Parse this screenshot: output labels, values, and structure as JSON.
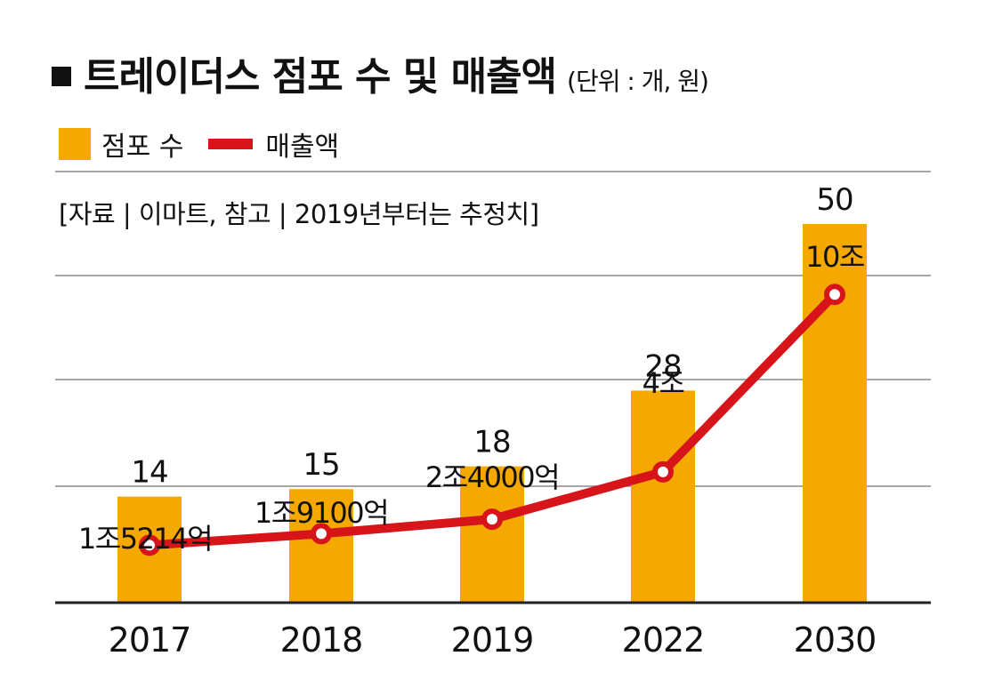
{
  "header": {
    "title": "트레이더스 점포 수 및 매출액",
    "unit": "(단위 : 개, 원)"
  },
  "legend": {
    "bar_label": "점포 수",
    "line_label": "매출액"
  },
  "source": "[자료 | 이마트, 참고 | 2019년부터는 추정치]",
  "colors": {
    "bar": "#F5A800",
    "line": "#D7141A",
    "grid": "#888888",
    "axis": "#222222",
    "marker_fill": "#ffffff"
  },
  "chart_data": {
    "type": "bar",
    "title": "트레이더스 점포 수 및 매출액",
    "categories": [
      "2017",
      "2018",
      "2019",
      "2022",
      "2030"
    ],
    "series": [
      {
        "name": "점포 수",
        "type": "bar",
        "values": [
          14,
          15,
          18,
          28,
          50
        ],
        "labels": [
          "14",
          "15",
          "18",
          "28",
          "50"
        ]
      },
      {
        "name": "매출액",
        "type": "line",
        "values_won_eok": [
          15214,
          19100,
          24000,
          40000,
          100000
        ],
        "labels": [
          "1조5214억",
          "1조9100억",
          "2조4000억",
          "4조",
          "10조"
        ]
      }
    ],
    "grid": true,
    "legend_position": "top-left"
  }
}
